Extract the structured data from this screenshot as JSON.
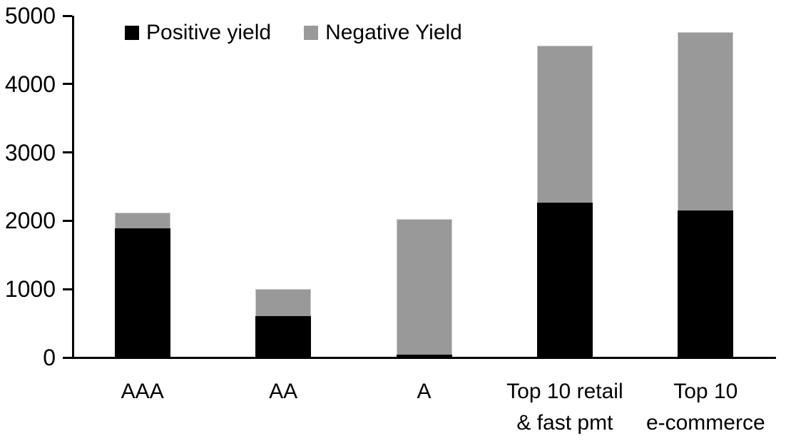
{
  "chart_data": {
    "type": "bar",
    "stacked": true,
    "title": "",
    "xlabel": "",
    "ylabel": "",
    "categories": [
      "AAA",
      "AA",
      "A",
      "Top 10 retail\n& fast pmt",
      "Top 10\ne-commerce"
    ],
    "series": [
      {
        "name": "Positive yield",
        "color": "#000000",
        "values": [
          1890,
          610,
          40,
          2270,
          2150
        ]
      },
      {
        "name": "Negative Yield",
        "color": "#999999",
        "values": [
          230,
          390,
          1990,
          2290,
          2610
        ]
      }
    ],
    "totals": [
      2120,
      1000,
      2030,
      4560,
      4760
    ],
    "ylim": [
      0,
      5000
    ],
    "yticks": [
      0,
      1000,
      2000,
      3000,
      4000,
      5000
    ],
    "grid": false,
    "legend_position": "top",
    "axis_color": "#000000",
    "background_color": "#ffffff"
  }
}
